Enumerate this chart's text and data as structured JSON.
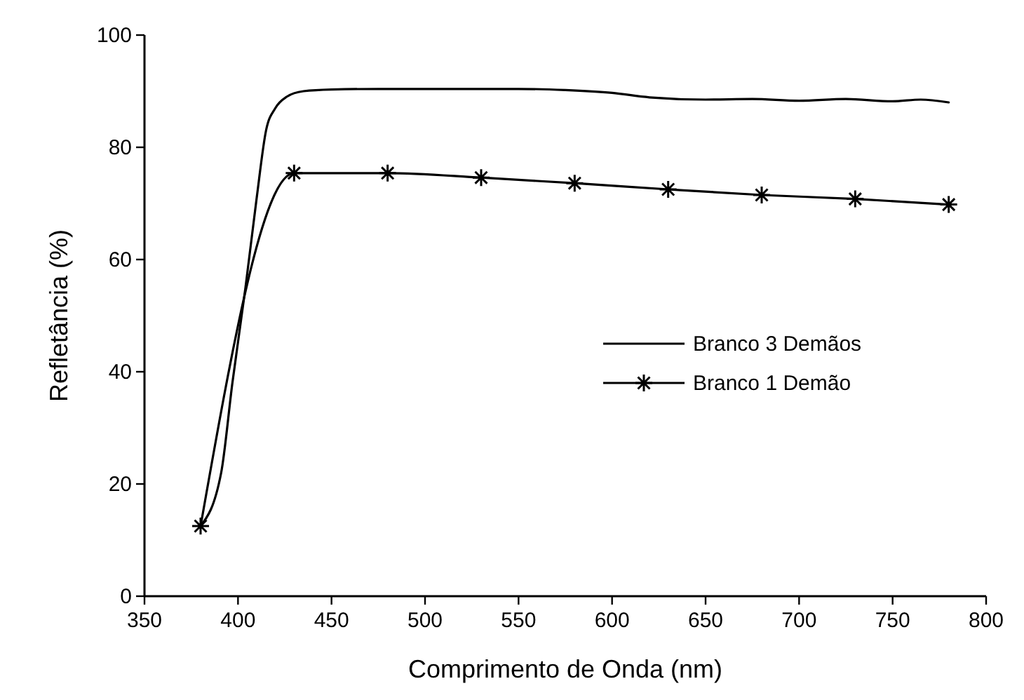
{
  "chart_data": {
    "type": "line",
    "xlabel": "Comprimento de Onda (nm)",
    "ylabel": "Refletância (%)",
    "xlim": [
      350,
      800
    ],
    "ylim": [
      0,
      100
    ],
    "xticks": [
      350,
      400,
      450,
      500,
      550,
      600,
      650,
      700,
      750,
      800
    ],
    "yticks": [
      0,
      20,
      40,
      60,
      80,
      100
    ],
    "legend": "right",
    "line_style": "solid",
    "series": [
      {
        "name": "Branco 3 Demãos",
        "color": "#000000",
        "x": [
          380,
          391,
          397,
          404,
          410,
          415,
          420,
          426,
          435,
          450,
          475,
          500,
          525,
          550,
          575,
          600,
          620,
          650,
          675,
          700,
          725,
          750,
          765,
          780
        ],
        "values": [
          12.5,
          22,
          38,
          55,
          71,
          83,
          87,
          89,
          90,
          90.3,
          90.4,
          90.4,
          90.4,
          90.4,
          90.2,
          89.7,
          88.9,
          88.5,
          88.6,
          88.3,
          88.6,
          88.2,
          88.5,
          88
        ]
      },
      {
        "name": "Branco 1 Demão",
        "color": "#000000",
        "marker": "cross",
        "x": [
          380,
          430,
          480,
          530,
          580,
          630,
          680,
          730,
          780
        ],
        "values": [
          12.5,
          75.4,
          75.4,
          74.6,
          73.6,
          72.5,
          71.5,
          70.8,
          69.8
        ]
      }
    ]
  }
}
